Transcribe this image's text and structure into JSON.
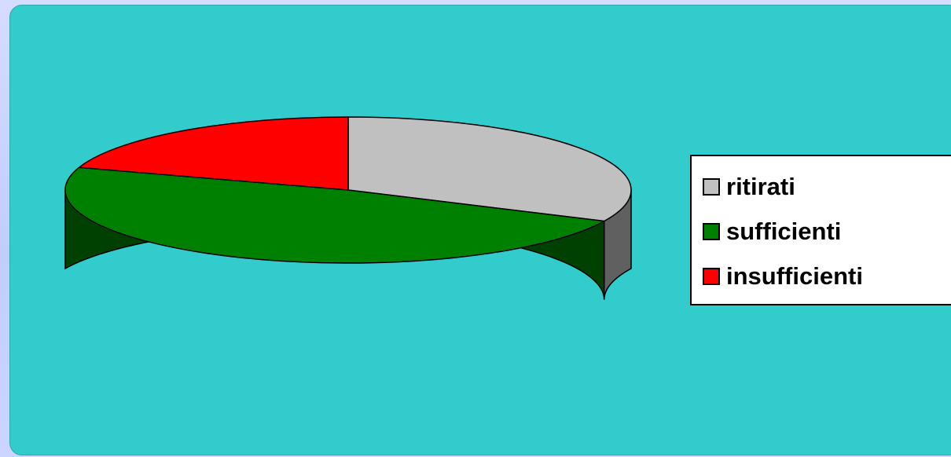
{
  "chart_data": {
    "type": "pie",
    "title": "",
    "categories": [
      "ritirati",
      "sufficienti",
      "insufficienti"
    ],
    "values": [
      32,
      48,
      20
    ],
    "colors": [
      "#c0c0c0",
      "#008000",
      "#ff0000"
    ],
    "side_colors": [
      "#606060",
      "#004000",
      "#800000"
    ],
    "style": "3d",
    "legend_position": "right"
  },
  "background_color": "#33cccc",
  "page_background": "#c8d0ff"
}
